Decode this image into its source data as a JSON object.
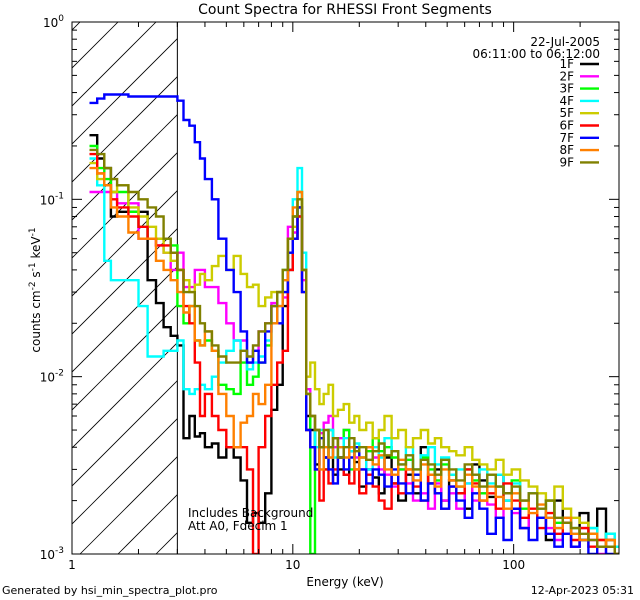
{
  "chart_data": {
    "type": "line",
    "title": "Count Spectra for RHESSI Front Segments",
    "xlabel": "Energy (keV)",
    "ylabel": "counts cm-2 s-1 keV-1",
    "x_scale": "log",
    "y_scale": "log",
    "xlim": [
      1.0,
      300.0
    ],
    "ylim": [
      0.001,
      1.0
    ],
    "x_ticks": [
      {
        "v": 1,
        "label": "1"
      },
      {
        "v": 10,
        "label": "10"
      },
      {
        "v": 100,
        "label": "100"
      }
    ],
    "y_ticks": [
      {
        "v": 1,
        "base": "10",
        "exp": "0"
      },
      {
        "v": 0.1,
        "base": "10",
        "exp": "-1"
      },
      {
        "v": 0.01,
        "base": "10",
        "exp": "-2"
      },
      {
        "v": 0.001,
        "base": "10",
        "exp": "-3"
      }
    ],
    "date": "22-Jul-2005",
    "time_range": "06:11:00 to 06:12:00",
    "annotation_lines": [
      "Includes Background",
      "Att A0, Fdecim 1"
    ],
    "hatched_region_max_kev": 3.0,
    "energy_bins": [
      1.2,
      1.3,
      1.4,
      1.5,
      1.6,
      1.8,
      2.0,
      2.2,
      2.4,
      2.6,
      2.8,
      3.0,
      3.2,
      3.4,
      3.6,
      3.8,
      4.0,
      4.3,
      4.6,
      5.0,
      5.4,
      5.8,
      6.2,
      6.6,
      7.0,
      7.5,
      8.0,
      8.5,
      9.0,
      9.5,
      10.0,
      10.5,
      11.0,
      11.5,
      12.0,
      12.6,
      13.2,
      13.8,
      14.5,
      15.2,
      16.0,
      17.0,
      18.0,
      19.0,
      20.0,
      21.5,
      23.0,
      24.5,
      26.0,
      28.0,
      30.0,
      32.5,
      35.0,
      38.0,
      41.0,
      44.0,
      47.0,
      51.0,
      55.0,
      60.0,
      65.0,
      70.0,
      76.0,
      83.0,
      90.0,
      98.0,
      107.0,
      117.0,
      128.0,
      140.0,
      153.0,
      167.0,
      182.0,
      199.0,
      218.0,
      239.0,
      262.0,
      287.0,
      300.0
    ],
    "series": [
      {
        "name": "1F",
        "color": "#000000",
        "values": [
          0.23,
          0.17,
          0.15,
          0.08,
          0.085,
          0.085,
          0.085,
          0.035,
          0.026,
          0.019,
          0.017,
          0.015,
          0.0045,
          0.006,
          0.0046,
          0.0048,
          0.004,
          0.0042,
          0.0035,
          0.004,
          0.0035,
          0.0026,
          0.0015,
          0.0017,
          0.0015,
          0.0022,
          0.0065,
          0.009,
          0.025,
          0.04,
          0.06,
          0.09,
          0.04,
          0.006,
          0.005,
          0.0032,
          0.004,
          0.0035,
          0.004,
          0.0028,
          0.003,
          0.0028,
          0.0038,
          0.0033,
          0.0024,
          0.003,
          0.0027,
          0.0022,
          0.0035,
          0.0025,
          0.002,
          0.0028,
          0.0022,
          0.004,
          0.0025,
          0.003,
          0.002,
          0.0026,
          0.0022,
          0.0018,
          0.0032,
          0.0026,
          0.0021,
          0.0028,
          0.0022,
          0.0018,
          0.0014,
          0.0022,
          0.0016,
          0.0012,
          0.002,
          0.0015,
          0.0011,
          0.0017,
          0.0013,
          0.0018,
          0.0012,
          0.001
        ]
      },
      {
        "name": "2F",
        "color": "#ff00ff",
        "values": [
          0.11,
          0.11,
          0.11,
          0.11,
          0.095,
          0.095,
          0.06,
          0.06,
          0.055,
          0.05,
          0.04,
          0.05,
          0.032,
          0.032,
          0.04,
          0.04,
          0.032,
          0.032,
          0.026,
          0.02,
          0.016,
          0.016,
          0.012,
          0.014,
          0.018,
          0.02,
          0.026,
          0.03,
          0.028,
          0.07,
          0.065,
          0.08,
          0.035,
          0.0085,
          0.006,
          0.005,
          0.0048,
          0.0055,
          0.006,
          0.004,
          0.0045,
          0.005,
          0.004,
          0.0035,
          0.003,
          0.004,
          0.0035,
          0.003,
          0.0028,
          0.0024,
          0.003,
          0.0025,
          0.002,
          0.0022,
          0.0018,
          0.0025,
          0.002,
          0.0022,
          0.0018,
          0.0025,
          0.002,
          0.0022,
          0.0019,
          0.0016,
          0.002,
          0.0017,
          0.0014,
          0.0022,
          0.0016,
          0.0014,
          0.0012,
          0.0013,
          0.0011,
          0.0014,
          0.0012,
          0.001,
          0.0011,
          0.001
        ]
      },
      {
        "name": "3F",
        "color": "#00ff00",
        "values": [
          0.2,
          0.15,
          0.13,
          0.11,
          0.11,
          0.085,
          0.07,
          0.06,
          0.06,
          0.06,
          0.055,
          0.025,
          0.02,
          0.025,
          0.016,
          0.015,
          0.016,
          0.014,
          0.009,
          0.0085,
          0.008,
          0.012,
          0.009,
          0.01,
          0.012,
          0.015,
          0.02,
          0.03,
          0.04,
          0.05,
          0.08,
          0.11,
          0.04,
          0.008,
          0.001,
          0.005,
          0.004,
          0.003,
          0.005,
          0.0045,
          0.0035,
          0.005,
          0.003,
          0.004,
          0.0035,
          0.0038,
          0.0045,
          0.0038,
          0.004,
          0.0035,
          0.003,
          0.0034,
          0.0028,
          0.0035,
          0.003,
          0.0026,
          0.0032,
          0.0028,
          0.0024,
          0.003,
          0.0026,
          0.0022,
          0.0028,
          0.0024,
          0.002,
          0.0026,
          0.0018,
          0.0022,
          0.0016,
          0.002,
          0.0015,
          0.0016,
          0.0014,
          0.0012,
          0.0014,
          0.0011,
          0.0013,
          0.0011
        ]
      },
      {
        "name": "4F",
        "color": "#00ffff",
        "values": [
          0.17,
          0.12,
          0.045,
          0.035,
          0.035,
          0.035,
          0.025,
          0.013,
          0.013,
          0.014,
          0.014,
          0.016,
          0.0085,
          0.008,
          0.0085,
          0.009,
          0.0085,
          0.01,
          0.012,
          0.014,
          0.016,
          0.014,
          0.011,
          0.012,
          0.013,
          0.016,
          0.02,
          0.025,
          0.035,
          0.06,
          0.1,
          0.15,
          0.05,
          0.008,
          0.006,
          0.004,
          0.005,
          0.004,
          0.005,
          0.0035,
          0.004,
          0.0045,
          0.0038,
          0.0042,
          0.0035,
          0.003,
          0.004,
          0.0035,
          0.0045,
          0.0038,
          0.0032,
          0.004,
          0.003,
          0.0036,
          0.004,
          0.0032,
          0.0035,
          0.0028,
          0.003,
          0.0025,
          0.0028,
          0.003,
          0.0025,
          0.0028,
          0.002,
          0.0025,
          0.002,
          0.0022,
          0.0018,
          0.0016,
          0.0014,
          0.0016,
          0.0013,
          0.0012,
          0.0014,
          0.0011,
          0.0013,
          0.0011
        ]
      },
      {
        "name": "5F",
        "color": "#cccc00",
        "values": [
          0.16,
          0.13,
          0.12,
          0.11,
          0.12,
          0.09,
          0.08,
          0.07,
          0.06,
          0.05,
          0.045,
          0.04,
          0.035,
          0.03,
          0.033,
          0.038,
          0.035,
          0.042,
          0.048,
          0.04,
          0.048,
          0.038,
          0.032,
          0.033,
          0.025,
          0.028,
          0.03,
          0.03,
          0.03,
          0.06,
          0.07,
          0.1,
          0.04,
          0.01,
          0.012,
          0.0085,
          0.007,
          0.008,
          0.009,
          0.006,
          0.0065,
          0.007,
          0.0055,
          0.006,
          0.005,
          0.0055,
          0.0045,
          0.005,
          0.006,
          0.0045,
          0.005,
          0.004,
          0.0045,
          0.005,
          0.0042,
          0.0045,
          0.004,
          0.0038,
          0.0036,
          0.004,
          0.0034,
          0.0032,
          0.003,
          0.0034,
          0.0028,
          0.003,
          0.0026,
          0.0024,
          0.0022,
          0.002,
          0.0024,
          0.0018,
          0.0016,
          0.0015,
          0.0013,
          0.0012,
          0.0011,
          0.001
        ]
      },
      {
        "name": "6F",
        "color": "#ff0000",
        "values": [
          0.18,
          0.14,
          0.12,
          0.1,
          0.09,
          0.08,
          0.07,
          0.06,
          0.055,
          0.055,
          0.05,
          0.04,
          0.025,
          0.02,
          0.012,
          0.006,
          0.008,
          0.006,
          0.005,
          0.004,
          0.004,
          0.004,
          0.003,
          0.001,
          0.004,
          0.006,
          0.009,
          0.012,
          0.014,
          0.04,
          0.06,
          0.08,
          0.03,
          0.005,
          0.004,
          0.003,
          0.002,
          0.003,
          0.0025,
          0.003,
          0.0035,
          0.0028,
          0.0025,
          0.003,
          0.0022,
          0.0028,
          0.0024,
          0.002,
          0.0018,
          0.0025,
          0.0022,
          0.003,
          0.0024,
          0.002,
          0.0028,
          0.0022,
          0.0018,
          0.0024,
          0.0022,
          0.003,
          0.0025,
          0.002,
          0.0022,
          0.0018,
          0.0025,
          0.002,
          0.0016,
          0.0018,
          0.0014,
          0.0017,
          0.0013,
          0.0015,
          0.0012,
          0.0014,
          0.0011,
          0.0012,
          0.0011,
          0.001
        ]
      },
      {
        "name": "7F",
        "color": "#0000ff",
        "values": [
          0.35,
          0.37,
          0.39,
          0.39,
          0.39,
          0.38,
          0.38,
          0.38,
          0.38,
          0.38,
          0.38,
          0.36,
          0.28,
          0.26,
          0.21,
          0.17,
          0.13,
          0.1,
          0.06,
          0.04,
          0.03,
          0.018,
          0.012,
          0.014,
          0.012,
          0.018,
          0.025,
          0.02,
          0.03,
          0.05,
          0.06,
          0.09,
          0.03,
          0.005,
          0.004,
          0.003,
          0.0045,
          0.0035,
          0.003,
          0.0025,
          0.0035,
          0.003,
          0.0035,
          0.004,
          0.003,
          0.0025,
          0.003,
          0.0028,
          0.0024,
          0.003,
          0.0025,
          0.0022,
          0.0028,
          0.002,
          0.0025,
          0.0022,
          0.0018,
          0.0024,
          0.002,
          0.0016,
          0.0022,
          0.0018,
          0.0013,
          0.0016,
          0.0012,
          0.0018,
          0.0014,
          0.0012,
          0.0016,
          0.0013,
          0.0011,
          0.0013,
          0.0011,
          0.0012,
          0.001,
          0.0011,
          0.001,
          0.001
        ]
      },
      {
        "name": "8F",
        "color": "#ff8000",
        "values": [
          0.15,
          0.14,
          0.12,
          0.09,
          0.08,
          0.065,
          0.06,
          0.06,
          0.045,
          0.04,
          0.035,
          0.03,
          0.023,
          0.025,
          0.016,
          0.015,
          0.018,
          0.014,
          0.008,
          0.006,
          0.004,
          0.0055,
          0.006,
          0.008,
          0.007,
          0.009,
          0.02,
          0.025,
          0.035,
          0.06,
          0.09,
          0.11,
          0.04,
          0.008,
          0.006,
          0.005,
          0.003,
          0.004,
          0.0035,
          0.0045,
          0.004,
          0.0035,
          0.004,
          0.003,
          0.0035,
          0.004,
          0.0032,
          0.0036,
          0.003,
          0.0028,
          0.0034,
          0.003,
          0.0026,
          0.0032,
          0.0028,
          0.0024,
          0.003,
          0.0026,
          0.0024,
          0.0028,
          0.0024,
          0.002,
          0.0024,
          0.0021,
          0.0018,
          0.0022,
          0.002,
          0.0017,
          0.0019,
          0.0016,
          0.0014,
          0.0016,
          0.0013,
          0.0012,
          0.0013,
          0.0011,
          0.0012,
          0.001
        ]
      },
      {
        "name": "9F",
        "color": "#808000",
        "values": [
          0.19,
          0.18,
          0.15,
          0.13,
          0.12,
          0.11,
          0.1,
          0.09,
          0.08,
          0.06,
          0.05,
          0.04,
          0.03,
          0.03,
          0.025,
          0.02,
          0.018,
          0.015,
          0.013,
          0.012,
          0.012,
          0.014,
          0.013,
          0.015,
          0.018,
          0.02,
          0.025,
          0.03,
          0.04,
          0.06,
          0.08,
          0.1,
          0.04,
          0.008,
          0.006,
          0.005,
          0.004,
          0.005,
          0.004,
          0.0045,
          0.0035,
          0.004,
          0.0045,
          0.0038,
          0.004,
          0.0034,
          0.0038,
          0.0042,
          0.0036,
          0.0038,
          0.0032,
          0.0036,
          0.003,
          0.0034,
          0.0032,
          0.0028,
          0.0034,
          0.003,
          0.0026,
          0.0032,
          0.0028,
          0.0024,
          0.0028,
          0.0024,
          0.0022,
          0.0024,
          0.002,
          0.0022,
          0.0018,
          0.002,
          0.0016,
          0.0015,
          0.0014,
          0.0013,
          0.0012,
          0.0011,
          0.0011,
          0.001
        ]
      }
    ]
  },
  "footer": {
    "generated_by": "Generated by hsi_min_spectra_plot.pro",
    "timestamp": "12-Apr-2023 05:31"
  }
}
